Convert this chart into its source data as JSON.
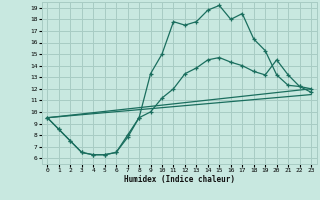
{
  "xlabel": "Humidex (Indice chaleur)",
  "bg_color": "#c8e8e0",
  "grid_color": "#a8ccc4",
  "line_color": "#1a6e5e",
  "xlim": [
    -0.5,
    23.5
  ],
  "ylim": [
    5.5,
    19.5
  ],
  "xticks": [
    0,
    1,
    2,
    3,
    4,
    5,
    6,
    7,
    8,
    9,
    10,
    11,
    12,
    13,
    14,
    15,
    16,
    17,
    18,
    19,
    20,
    21,
    22,
    23
  ],
  "yticks": [
    6,
    7,
    8,
    9,
    10,
    11,
    12,
    13,
    14,
    15,
    16,
    17,
    18,
    19
  ],
  "line1_x": [
    0,
    1,
    2,
    3,
    4,
    5,
    6,
    7,
    8,
    9,
    10,
    11,
    12,
    13,
    14,
    15,
    16,
    17,
    18,
    19,
    20,
    21,
    22,
    23
  ],
  "line1_y": [
    9.5,
    8.5,
    7.5,
    6.5,
    6.3,
    6.3,
    6.5,
    8.0,
    9.5,
    13.3,
    15.0,
    17.8,
    17.5,
    17.8,
    18.8,
    19.2,
    18.0,
    18.5,
    16.3,
    15.3,
    13.2,
    12.3,
    12.2,
    11.7
  ],
  "line2_x": [
    0,
    1,
    2,
    3,
    4,
    5,
    6,
    7,
    8,
    9,
    10,
    11,
    12,
    13,
    14,
    15,
    16,
    17,
    18,
    19,
    20,
    21,
    22,
    23
  ],
  "line2_y": [
    9.5,
    8.5,
    7.5,
    6.5,
    6.3,
    6.3,
    6.5,
    7.8,
    9.5,
    10.0,
    11.2,
    12.0,
    13.3,
    13.8,
    14.5,
    14.7,
    14.3,
    14.0,
    13.5,
    13.2,
    14.5,
    13.2,
    12.2,
    12.0
  ],
  "line3_x": [
    0,
    23
  ],
  "line3_y": [
    9.5,
    11.5
  ],
  "line4_x": [
    0,
    23
  ],
  "line4_y": [
    9.5,
    12.0
  ]
}
